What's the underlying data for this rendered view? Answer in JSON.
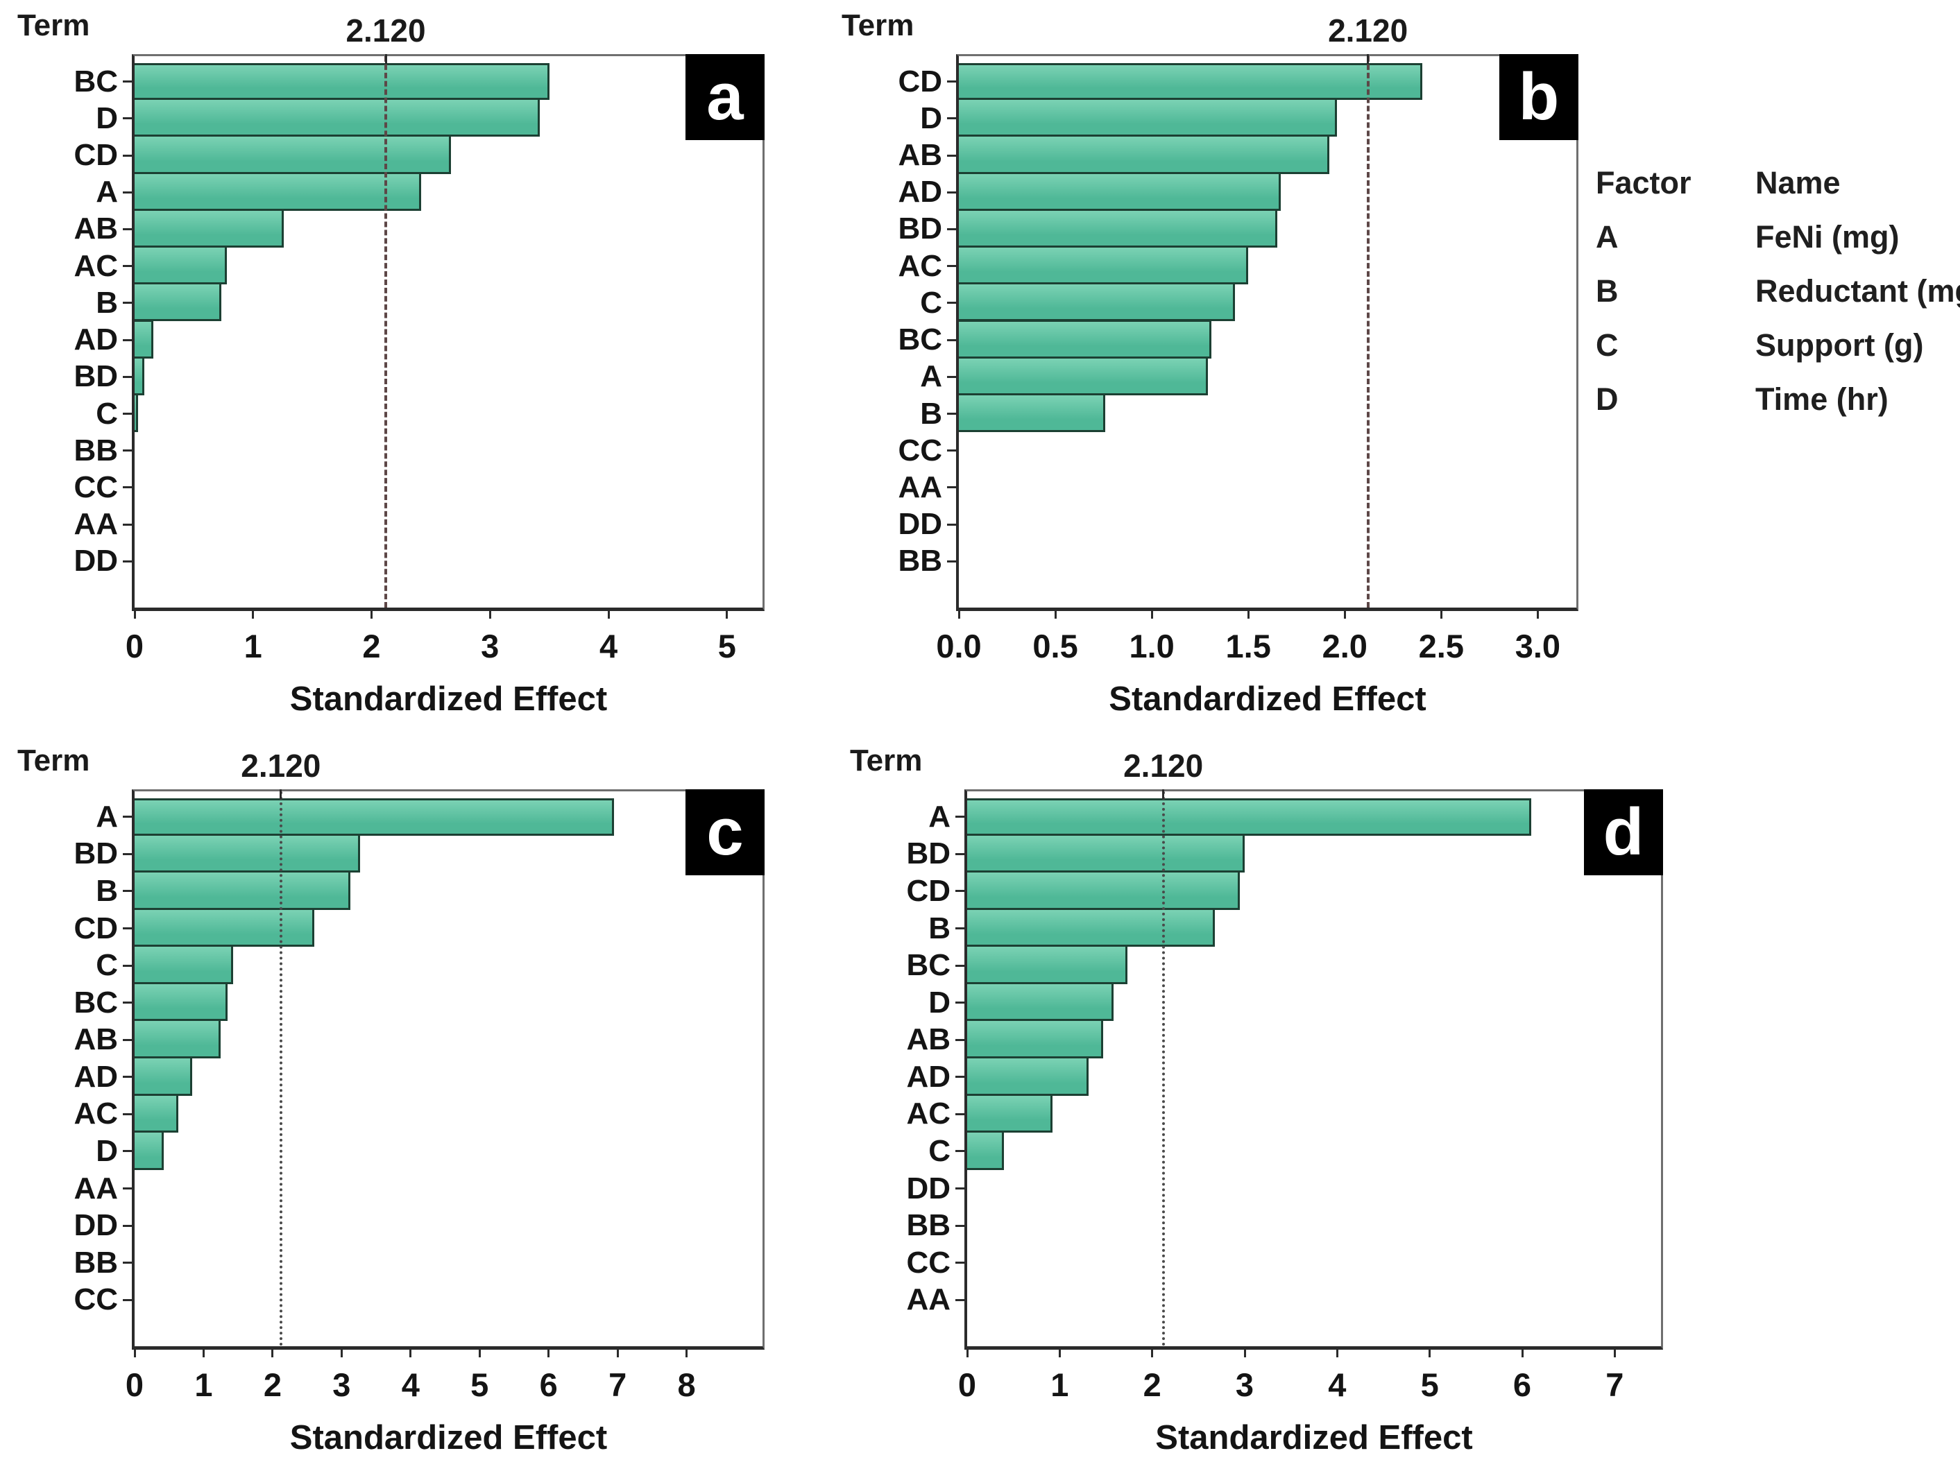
{
  "figure": {
    "colors": {
      "bar_fill": "#4fb897",
      "bar_fill_light": "#7bd2b4",
      "bar_border": "#1c4033",
      "frame": "#6f6f6f",
      "axis": "#2b2b2b",
      "ref_line_dashed": "#5d4747",
      "ref_line_dotted": "#4a4a4a",
      "panel_label_bg": "#000000",
      "panel_label_fg": "#ffffff"
    },
    "legend": {
      "header": {
        "factor": "Factor",
        "name": "Name"
      },
      "rows": [
        {
          "factor": "A",
          "name": "FeNi (mg)"
        },
        {
          "factor": "B",
          "name": "Reductant (mg)"
        },
        {
          "factor": "C",
          "name": "Support (g)"
        },
        {
          "factor": "D",
          "name": "Time (hr)"
        }
      ]
    }
  },
  "chart_data": [
    {
      "type": "bar",
      "orientation": "horizontal",
      "panel_label": "a",
      "ylabel": "Term",
      "xlabel": "Standardized Effect",
      "ref_line": 2.12,
      "ref_label": "2.120",
      "ref_style": "dashed",
      "xlim": [
        0,
        5.3
      ],
      "xticks": [
        0,
        1,
        2,
        3,
        4,
        5
      ],
      "xtick_labels": [
        "0",
        "1",
        "2",
        "3",
        "4",
        "5"
      ],
      "terms": [
        "BC",
        "D",
        "CD",
        "A",
        "AB",
        "AC",
        "B",
        "AD",
        "BD",
        "C",
        "BB",
        "CC",
        "AA",
        "DD"
      ],
      "values": [
        3.5,
        3.42,
        2.67,
        2.42,
        1.26,
        0.78,
        0.73,
        0.16,
        0.08,
        0.03,
        0,
        0,
        0,
        0
      ]
    },
    {
      "type": "bar",
      "orientation": "horizontal",
      "panel_label": "b",
      "ylabel": "Term",
      "xlabel": "Standardized Effect",
      "ref_line": 2.12,
      "ref_label": "2.120",
      "ref_style": "dashed",
      "xlim": [
        0,
        3.2
      ],
      "xticks": [
        0,
        0.5,
        1.0,
        1.5,
        2.0,
        2.5,
        3.0
      ],
      "xtick_labels": [
        "0.0",
        "0.5",
        "1.0",
        "1.5",
        "2.0",
        "2.5",
        "3.0"
      ],
      "terms": [
        "CD",
        "D",
        "AB",
        "AD",
        "BD",
        "AC",
        "C",
        "BC",
        "A",
        "B",
        "CC",
        "AA",
        "DD",
        "BB"
      ],
      "values": [
        2.4,
        1.96,
        1.92,
        1.67,
        1.65,
        1.5,
        1.43,
        1.31,
        1.29,
        0.76,
        0,
        0,
        0,
        0
      ]
    },
    {
      "type": "bar",
      "orientation": "horizontal",
      "panel_label": "c",
      "ylabel": "Term",
      "xlabel": "Standardized Effect",
      "ref_line": 2.12,
      "ref_label": "2.120",
      "ref_style": "dotted",
      "xlim": [
        0,
        9.1
      ],
      "xticks": [
        0,
        1,
        2,
        3,
        4,
        5,
        6,
        7,
        8
      ],
      "xtick_labels": [
        "0",
        "1",
        "2",
        "3",
        "4",
        "5",
        "6",
        "7",
        "8"
      ],
      "terms": [
        "A",
        "BD",
        "B",
        "CD",
        "C",
        "BC",
        "AB",
        "AD",
        "AC",
        "D",
        "AA",
        "DD",
        "BB",
        "CC"
      ],
      "values": [
        6.95,
        3.27,
        3.13,
        2.6,
        1.43,
        1.35,
        1.25,
        0.83,
        0.63,
        0.42,
        0,
        0,
        0,
        0
      ]
    },
    {
      "type": "bar",
      "orientation": "horizontal",
      "panel_label": "d",
      "ylabel": "Term",
      "xlabel": "Standardized Effect",
      "ref_line": 2.12,
      "ref_label": "2.120",
      "ref_style": "dotted",
      "xlim": [
        0,
        7.5
      ],
      "xticks": [
        0,
        1,
        2,
        3,
        4,
        5,
        6,
        7
      ],
      "xtick_labels": [
        "0",
        "1",
        "2",
        "3",
        "4",
        "5",
        "6",
        "7"
      ],
      "terms": [
        "A",
        "BD",
        "CD",
        "B",
        "BC",
        "D",
        "AB",
        "AD",
        "AC",
        "C",
        "DD",
        "BB",
        "CC",
        "AA"
      ],
      "values": [
        6.1,
        3.0,
        2.95,
        2.68,
        1.73,
        1.58,
        1.47,
        1.31,
        0.92,
        0.4,
        0,
        0,
        0,
        0
      ]
    }
  ]
}
